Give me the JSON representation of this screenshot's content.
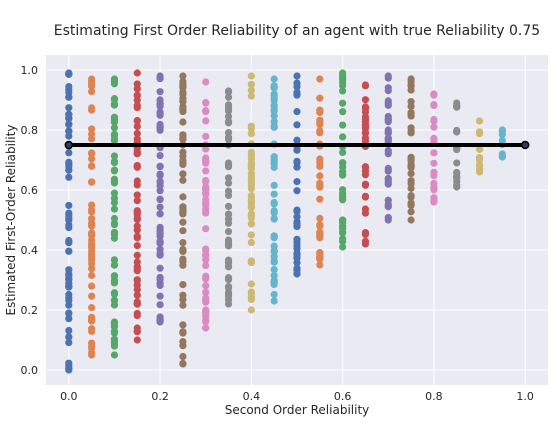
{
  "chart_data": {
    "type": "scatter",
    "title": "Estimating First Order Reliability of an agent with true Reliability 0.75",
    "xlabel": "Second Order Reliability",
    "ylabel": "Estimated First-Order Reliability",
    "xlim": [
      -0.05,
      1.05
    ],
    "ylim": [
      -0.05,
      1.05
    ],
    "xticks": [
      "0.0",
      "0.2",
      "0.4",
      "0.6",
      "0.8",
      "1.0"
    ],
    "yticks": [
      "0.0",
      "0.2",
      "0.4",
      "0.6",
      "0.8",
      "1.0"
    ],
    "grid": true,
    "background": "#EAEAF2",
    "palette": [
      "#4C72B0",
      "#DD8452",
      "#55A868",
      "#C44E52",
      "#8172B3",
      "#937860",
      "#DA8BC3",
      "#8C8C8C",
      "#CCB974",
      "#64B5CD"
    ],
    "series": [
      {
        "x": 0.0,
        "min": 0.0,
        "max": 0.99
      },
      {
        "x": 0.05,
        "min": 0.05,
        "max": 0.97
      },
      {
        "x": 0.1,
        "min": 0.05,
        "max": 0.97
      },
      {
        "x": 0.15,
        "min": 0.1,
        "max": 0.99
      },
      {
        "x": 0.2,
        "min": 0.16,
        "max": 0.98
      },
      {
        "x": 0.25,
        "min": 0.02,
        "max": 0.98
      },
      {
        "x": 0.3,
        "min": 0.14,
        "max": 0.96
      },
      {
        "x": 0.35,
        "min": 0.22,
        "max": 0.93
      },
      {
        "x": 0.4,
        "min": 0.2,
        "max": 0.98
      },
      {
        "x": 0.45,
        "min": 0.23,
        "max": 0.97
      },
      {
        "x": 0.5,
        "min": 0.32,
        "max": 0.98
      },
      {
        "x": 0.55,
        "min": 0.35,
        "max": 0.97
      },
      {
        "x": 0.6,
        "min": 0.41,
        "max": 0.99
      },
      {
        "x": 0.65,
        "min": 0.42,
        "max": 0.95
      },
      {
        "x": 0.7,
        "min": 0.5,
        "max": 0.98
      },
      {
        "x": 0.75,
        "min": 0.5,
        "max": 0.97
      },
      {
        "x": 0.8,
        "min": 0.56,
        "max": 0.92
      },
      {
        "x": 0.85,
        "min": 0.61,
        "max": 0.89
      },
      {
        "x": 0.9,
        "min": 0.66,
        "max": 0.83
      },
      {
        "x": 0.95,
        "min": 0.71,
        "max": 0.8
      },
      {
        "x": 1.0,
        "min": 0.75,
        "max": 0.75
      }
    ],
    "reference_line": {
      "x": [
        0.0,
        1.0
      ],
      "y": [
        0.75,
        0.75
      ],
      "color": "#000000"
    }
  }
}
